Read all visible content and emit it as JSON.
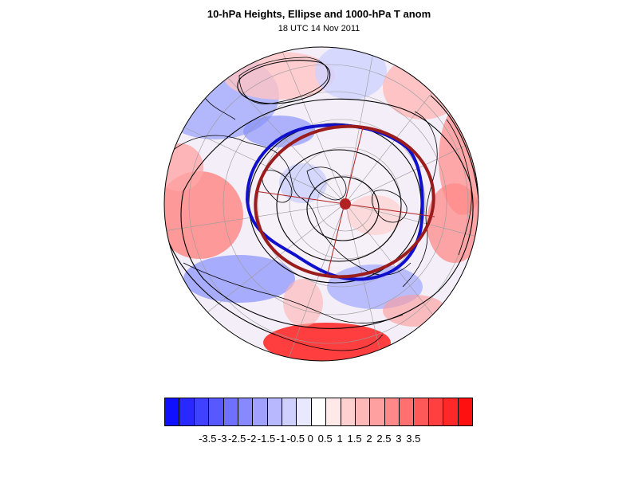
{
  "header": {
    "title": "10-hPa Heights, Ellipse and 1000-hPa T anom",
    "subtitle": "18 UTC 14 Nov 2011"
  },
  "colors": {
    "ellipse": "#9b1c1c",
    "vortex_edge": "#1010cc",
    "contour": "#000000",
    "land_outline": "#000000",
    "grid": "#999999"
  },
  "colorbar": {
    "labels": [
      "-3.5",
      "-3",
      "-2.5",
      "-2",
      "-1.5",
      "-1",
      "-0.5",
      "0",
      "0.5",
      "1",
      "1.5",
      "2",
      "2.5",
      "3",
      "3.5"
    ],
    "colors": [
      "#1010ff",
      "#2828ff",
      "#4040ff",
      "#5858ff",
      "#7070ff",
      "#8888ff",
      "#a0a0ff",
      "#b8b8ff",
      "#d0d0ff",
      "#e8e8ff",
      "#ffffff",
      "#ffe8e8",
      "#ffd0d0",
      "#ffb8b8",
      "#ffa0a0",
      "#ff8888",
      "#ff7070",
      "#ff5858",
      "#ff4040",
      "#ff2828",
      "#ff1010"
    ]
  }
}
